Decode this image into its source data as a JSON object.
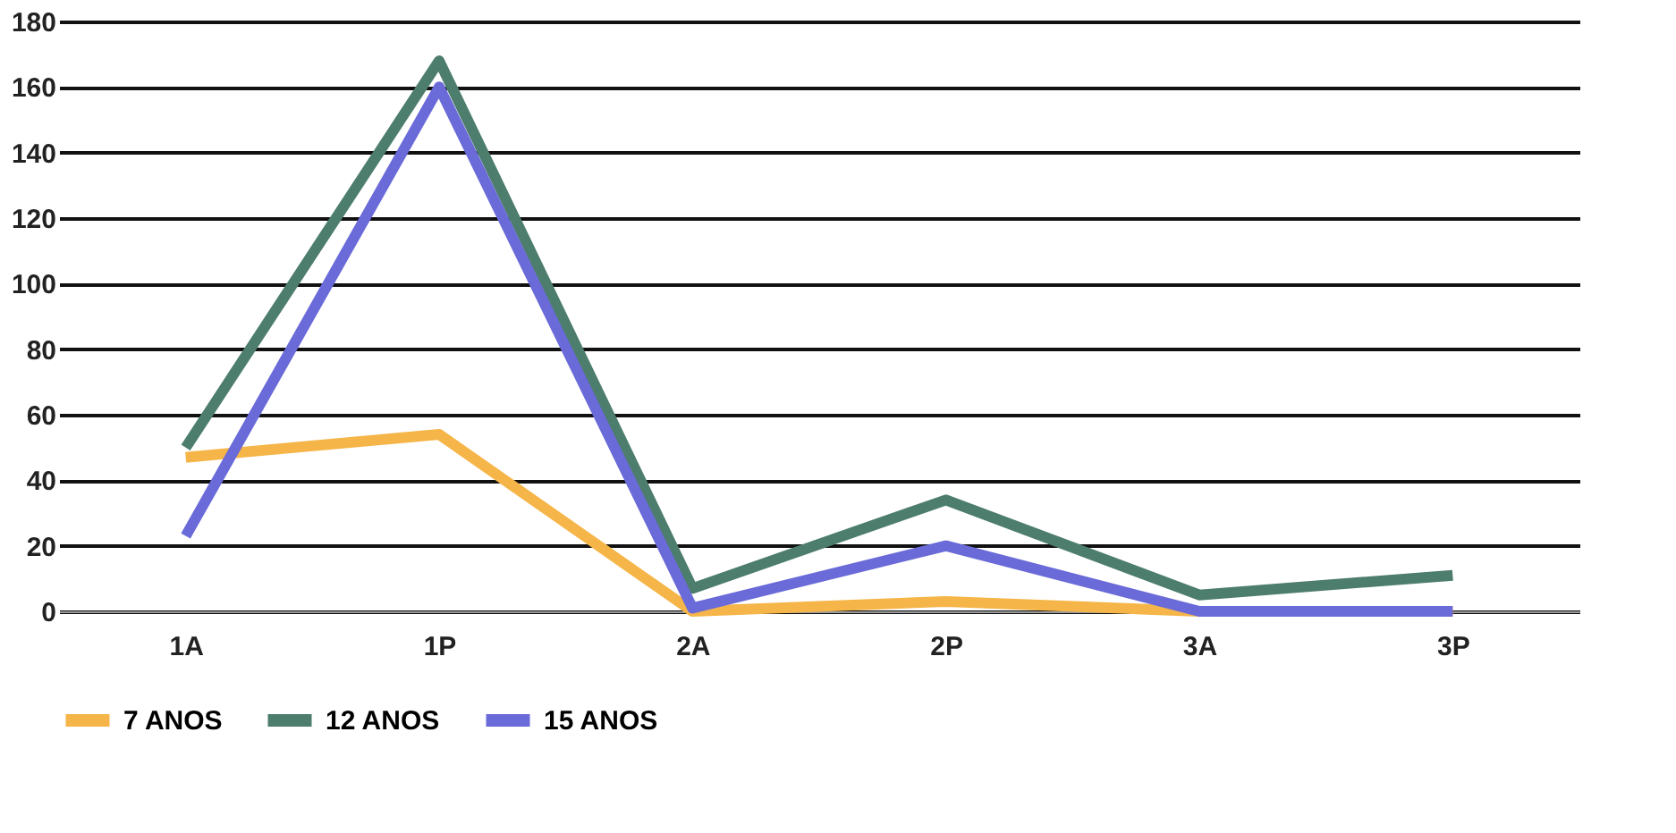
{
  "chart_data": {
    "type": "line",
    "categories": [
      "1A",
      "1P",
      "2A",
      "2P",
      "3A",
      "3P"
    ],
    "series": [
      {
        "name": "7 ANOS",
        "color": "#f5b548",
        "values": [
          47,
          54,
          0,
          3,
          0,
          0
        ]
      },
      {
        "name": "12 ANOS",
        "color": "#4d7d6d",
        "values": [
          50,
          168,
          7,
          34,
          5,
          11
        ]
      },
      {
        "name": "15 ANOS",
        "color": "#6a6ad8",
        "values": [
          23,
          160,
          1,
          20,
          0,
          0
        ]
      }
    ],
    "ylim": [
      0,
      180
    ],
    "yticks": [
      0,
      20,
      40,
      60,
      80,
      100,
      120,
      140,
      160,
      180
    ],
    "grid": "y",
    "legend": "bottom",
    "marker": "none",
    "line_style": "solid"
  }
}
